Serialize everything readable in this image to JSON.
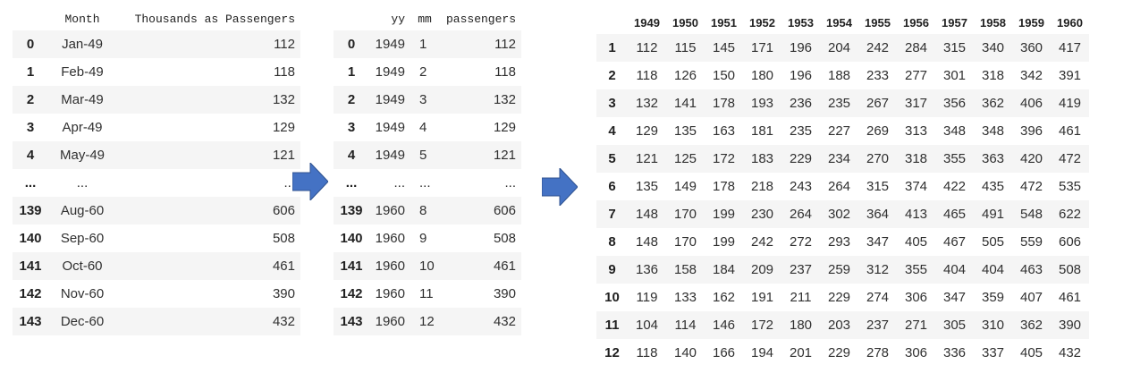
{
  "table1": {
    "headers": [
      "",
      "Month",
      "Thousands as Passengers"
    ],
    "rows": [
      {
        "idx": "0",
        "month": "Jan-49",
        "val": "112"
      },
      {
        "idx": "1",
        "month": "Feb-49",
        "val": "118"
      },
      {
        "idx": "2",
        "month": "Mar-49",
        "val": "132"
      },
      {
        "idx": "3",
        "month": "Apr-49",
        "val": "129"
      },
      {
        "idx": "4",
        "month": "May-49",
        "val": "121"
      },
      {
        "idx": "...",
        "month": "...",
        "val": "..."
      },
      {
        "idx": "139",
        "month": "Aug-60",
        "val": "606"
      },
      {
        "idx": "140",
        "month": "Sep-60",
        "val": "508"
      },
      {
        "idx": "141",
        "month": "Oct-60",
        "val": "461"
      },
      {
        "idx": "142",
        "month": "Nov-60",
        "val": "390"
      },
      {
        "idx": "143",
        "month": "Dec-60",
        "val": "432"
      }
    ]
  },
  "table2": {
    "headers": [
      "",
      "yy",
      "mm",
      "passengers"
    ],
    "rows": [
      {
        "idx": "0",
        "yy": "1949",
        "mm": "1",
        "val": "112"
      },
      {
        "idx": "1",
        "yy": "1949",
        "mm": "2",
        "val": "118"
      },
      {
        "idx": "2",
        "yy": "1949",
        "mm": "3",
        "val": "132"
      },
      {
        "idx": "3",
        "yy": "1949",
        "mm": "4",
        "val": "129"
      },
      {
        "idx": "4",
        "yy": "1949",
        "mm": "5",
        "val": "121"
      },
      {
        "idx": "...",
        "yy": "...",
        "mm": "...",
        "val": "..."
      },
      {
        "idx": "139",
        "yy": "1960",
        "mm": "8",
        "val": "606"
      },
      {
        "idx": "140",
        "yy": "1960",
        "mm": "9",
        "val": "508"
      },
      {
        "idx": "141",
        "yy": "1960",
        "mm": "10",
        "val": "461"
      },
      {
        "idx": "142",
        "yy": "1960",
        "mm": "11",
        "val": "390"
      },
      {
        "idx": "143",
        "yy": "1960",
        "mm": "12",
        "val": "432"
      }
    ]
  },
  "table3": {
    "headers": [
      "",
      "1949",
      "1950",
      "1951",
      "1952",
      "1953",
      "1954",
      "1955",
      "1956",
      "1957",
      "1958",
      "1959",
      "1960"
    ],
    "rows": [
      {
        "idx": "1",
        "cells": [
          "112",
          "115",
          "145",
          "171",
          "196",
          "204",
          "242",
          "284",
          "315",
          "340",
          "360",
          "417"
        ]
      },
      {
        "idx": "2",
        "cells": [
          "118",
          "126",
          "150",
          "180",
          "196",
          "188",
          "233",
          "277",
          "301",
          "318",
          "342",
          "391"
        ]
      },
      {
        "idx": "3",
        "cells": [
          "132",
          "141",
          "178",
          "193",
          "236",
          "235",
          "267",
          "317",
          "356",
          "362",
          "406",
          "419"
        ]
      },
      {
        "idx": "4",
        "cells": [
          "129",
          "135",
          "163",
          "181",
          "235",
          "227",
          "269",
          "313",
          "348",
          "348",
          "396",
          "461"
        ]
      },
      {
        "idx": "5",
        "cells": [
          "121",
          "125",
          "172",
          "183",
          "229",
          "234",
          "270",
          "318",
          "355",
          "363",
          "420",
          "472"
        ]
      },
      {
        "idx": "6",
        "cells": [
          "135",
          "149",
          "178",
          "218",
          "243",
          "264",
          "315",
          "374",
          "422",
          "435",
          "472",
          "535"
        ]
      },
      {
        "idx": "7",
        "cells": [
          "148",
          "170",
          "199",
          "230",
          "264",
          "302",
          "364",
          "413",
          "465",
          "491",
          "548",
          "622"
        ]
      },
      {
        "idx": "8",
        "cells": [
          "148",
          "170",
          "199",
          "242",
          "272",
          "293",
          "347",
          "405",
          "467",
          "505",
          "559",
          "606"
        ]
      },
      {
        "idx": "9",
        "cells": [
          "136",
          "158",
          "184",
          "209",
          "237",
          "259",
          "312",
          "355",
          "404",
          "404",
          "463",
          "508"
        ]
      },
      {
        "idx": "10",
        "cells": [
          "119",
          "133",
          "162",
          "191",
          "211",
          "229",
          "274",
          "306",
          "347",
          "359",
          "407",
          "461"
        ]
      },
      {
        "idx": "11",
        "cells": [
          "104",
          "114",
          "146",
          "172",
          "180",
          "203",
          "237",
          "271",
          "305",
          "310",
          "362",
          "390"
        ]
      },
      {
        "idx": "12",
        "cells": [
          "118",
          "140",
          "166",
          "194",
          "201",
          "229",
          "278",
          "306",
          "336",
          "337",
          "405",
          "432"
        ]
      }
    ]
  },
  "arrows": {
    "color": "#4472c4",
    "icon": "right-arrow"
  }
}
